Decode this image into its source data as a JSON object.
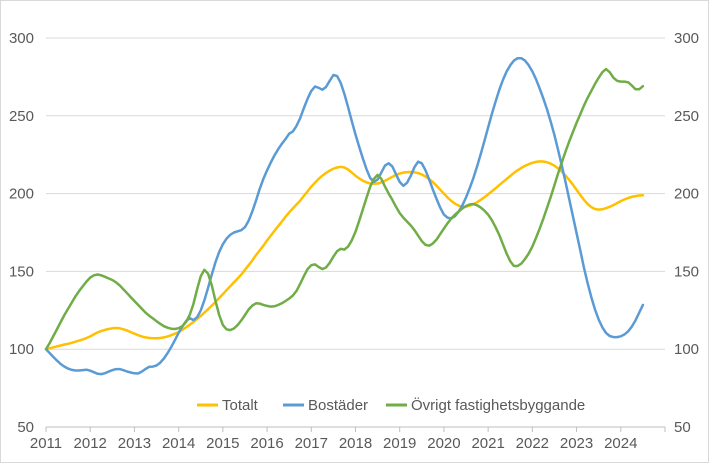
{
  "chart_data": {
    "type": "line",
    "title": "",
    "xlabel": "",
    "ylabel": "",
    "x_start_year": 2011,
    "points_per_year": 12,
    "x_tick_years": [
      2011,
      2012,
      2013,
      2014,
      2015,
      2016,
      2017,
      2018,
      2019,
      2020,
      2021,
      2022,
      2023,
      2024
    ],
    "x_axis_end_year": 2025,
    "y_axis": {
      "min": 50,
      "max": 300,
      "step": 50,
      "ticks": [
        50,
        100,
        150,
        200,
        250,
        300
      ],
      "shown_on_both_sides": true
    },
    "grid": "horizontal",
    "legend_position": "bottom",
    "colors": {
      "grid": "#d9d9d9",
      "axis_line": "#bfbfbf",
      "tick_text": "#595959",
      "background": "#ffffff",
      "frame_border": "#d9d9d9"
    },
    "series": [
      {
        "name": "Totalt",
        "color": "#FFC000",
        "values": [
          100,
          100.6,
          101.2,
          101.8,
          102.4,
          103,
          103.5,
          104.1,
          104.8,
          105.5,
          106.3,
          107.2,
          108.2,
          109.5,
          110.8,
          111.7,
          112.4,
          113,
          113.4,
          113.6,
          113.4,
          112.8,
          112,
          111,
          110,
          109,
          108.2,
          107.6,
          107.2,
          107,
          107,
          107.2,
          107.6,
          108.2,
          109,
          110,
          111,
          112.5,
          114,
          115.7,
          117.5,
          119.4,
          121.4,
          123.5,
          125.7,
          128,
          130.4,
          132.9,
          135.4,
          137.9,
          140.4,
          142.9,
          145.4,
          148,
          151,
          154,
          157,
          160.5,
          163.5,
          166.5,
          170,
          173,
          176,
          179,
          182,
          185,
          188,
          190.5,
          193,
          195.5,
          198.5,
          201.5,
          204.5,
          207,
          209.5,
          211.5,
          213.3,
          214.8,
          216,
          216.8,
          217.2,
          216.8,
          215.5,
          213.5,
          211.5,
          209.8,
          208.3,
          207.2,
          206.5,
          206.3,
          206.5,
          207.2,
          208.2,
          209.5,
          210.8,
          212,
          212.9,
          213.5,
          213.8,
          213.9,
          213.7,
          213.2,
          212.3,
          211,
          209.3,
          207.3,
          205,
          202.5,
          200,
          197.5,
          195.3,
          193.5,
          192.2,
          191.6,
          191.6,
          192.2,
          193.2,
          194.5,
          196,
          197.7,
          199.5,
          201.4,
          203.4,
          205.4,
          207.4,
          209.4,
          211.4,
          213.3,
          215,
          216.5,
          217.8,
          218.9,
          219.8,
          220.4,
          220.7,
          220.6,
          220.1,
          219.2,
          217.9,
          216.2,
          214.1,
          211.6,
          208.8,
          205.7,
          202.4,
          199.1,
          196,
          193.3,
          191.3,
          190.1,
          189.7,
          190,
          190.6,
          191.5,
          192.6,
          193.9,
          195.2,
          196.3,
          197.2,
          197.9,
          198.4,
          198.8,
          199
        ]
      },
      {
        "name": "Bostäder",
        "color": "#5B9BD5",
        "values": [
          100,
          97.5,
          95,
          92.6,
          90.5,
          88.8,
          87.5,
          86.7,
          86.3,
          86.3,
          86.6,
          86.8,
          86.2,
          85.2,
          84.2,
          84,
          84.6,
          85.6,
          86.5,
          87.2,
          87.2,
          86.5,
          85.7,
          85,
          84.5,
          84.4,
          85.6,
          87.3,
          88.7,
          88.8,
          89.5,
          91.3,
          94,
          97.5,
          101.5,
          106,
          110.5,
          114.5,
          118,
          120,
          118.7,
          120.5,
          125,
          131.5,
          139.5,
          148,
          156,
          162.5,
          167.5,
          171,
          173.5,
          175,
          175.8,
          176.5,
          178.5,
          182.5,
          188.5,
          195.5,
          203,
          209.5,
          215,
          220,
          224.5,
          228.5,
          232,
          235,
          238.5,
          240,
          243.5,
          248.5,
          255,
          261,
          266,
          268.8,
          268,
          266.8,
          268.5,
          272.5,
          276.2,
          275.5,
          271,
          264,
          255.5,
          246.5,
          238,
          230,
          222.5,
          215.5,
          210,
          207.5,
          209,
          213.5,
          218,
          219.5,
          217.5,
          212.5,
          207.5,
          205,
          207,
          211.5,
          217,
          220.5,
          219.5,
          215,
          209,
          202.5,
          196.5,
          191,
          186.5,
          184.5,
          184,
          185.5,
          188.5,
          192.5,
          197.5,
          203.5,
          210,
          217.5,
          225.5,
          234,
          242.5,
          251,
          259,
          266.5,
          273,
          278.5,
          282.5,
          285.5,
          287,
          287,
          285.5,
          282.5,
          278.5,
          273.5,
          267.5,
          261,
          254,
          246,
          237.5,
          228,
          218,
          207.5,
          196.5,
          185.5,
          174.5,
          163.5,
          152.5,
          142.5,
          133.5,
          125.5,
          119,
          114,
          110.5,
          108.5,
          107.8,
          107.8,
          108.3,
          109.5,
          111.5,
          114.5,
          118.5,
          123.5,
          128.5
        ]
      },
      {
        "name": "Övrigt fastighetsbyggande",
        "color": "#70AD47",
        "values": [
          100,
          104,
          108.5,
          113,
          117.5,
          122,
          126,
          130,
          134,
          137.5,
          140.5,
          143.5,
          146,
          147.5,
          148,
          147.5,
          146.5,
          145.5,
          144.5,
          143,
          141,
          138.5,
          136,
          133.5,
          131,
          128.5,
          126,
          123.5,
          121.5,
          119.8,
          118,
          116.3,
          114.8,
          113.8,
          113.2,
          113,
          113.5,
          114.8,
          117.5,
          122,
          129,
          138.5,
          147,
          151,
          148.5,
          141,
          131,
          122,
          115.5,
          112.8,
          112.3,
          113.3,
          115.5,
          118.5,
          122,
          125.5,
          128,
          129.5,
          129.3,
          128.5,
          127.8,
          127.4,
          127.6,
          128.4,
          129.5,
          131,
          132.5,
          134.5,
          137.5,
          142,
          147,
          151.5,
          154,
          154.5,
          152.8,
          151.5,
          152.5,
          155.5,
          159.5,
          163,
          164.5,
          164,
          166,
          170,
          175.5,
          182.5,
          190,
          197.5,
          204.5,
          209.5,
          212,
          209.5,
          204.5,
          200,
          196,
          191.5,
          187.5,
          184.5,
          182,
          179.5,
          176.5,
          173,
          169.5,
          167,
          166.5,
          168,
          170.5,
          174,
          177.5,
          181,
          184,
          186.5,
          188.5,
          190.5,
          192,
          193,
          193.3,
          192.5,
          191,
          189,
          186.5,
          183,
          178.5,
          173.5,
          167.5,
          161.5,
          156.5,
          153.5,
          153.5,
          155,
          158,
          161.5,
          166,
          171.5,
          177.5,
          184,
          191,
          198,
          205.5,
          213,
          220,
          227,
          233.5,
          239.5,
          245.5,
          251,
          256.5,
          261.5,
          266,
          270.5,
          274.5,
          278,
          280,
          278,
          274.5,
          272.5,
          272,
          272,
          271.5,
          269.5,
          267,
          267,
          269
        ]
      }
    ],
    "legend": [
      "Totalt",
      "Bostäder",
      "Övrigt fastighetsbyggande"
    ]
  }
}
